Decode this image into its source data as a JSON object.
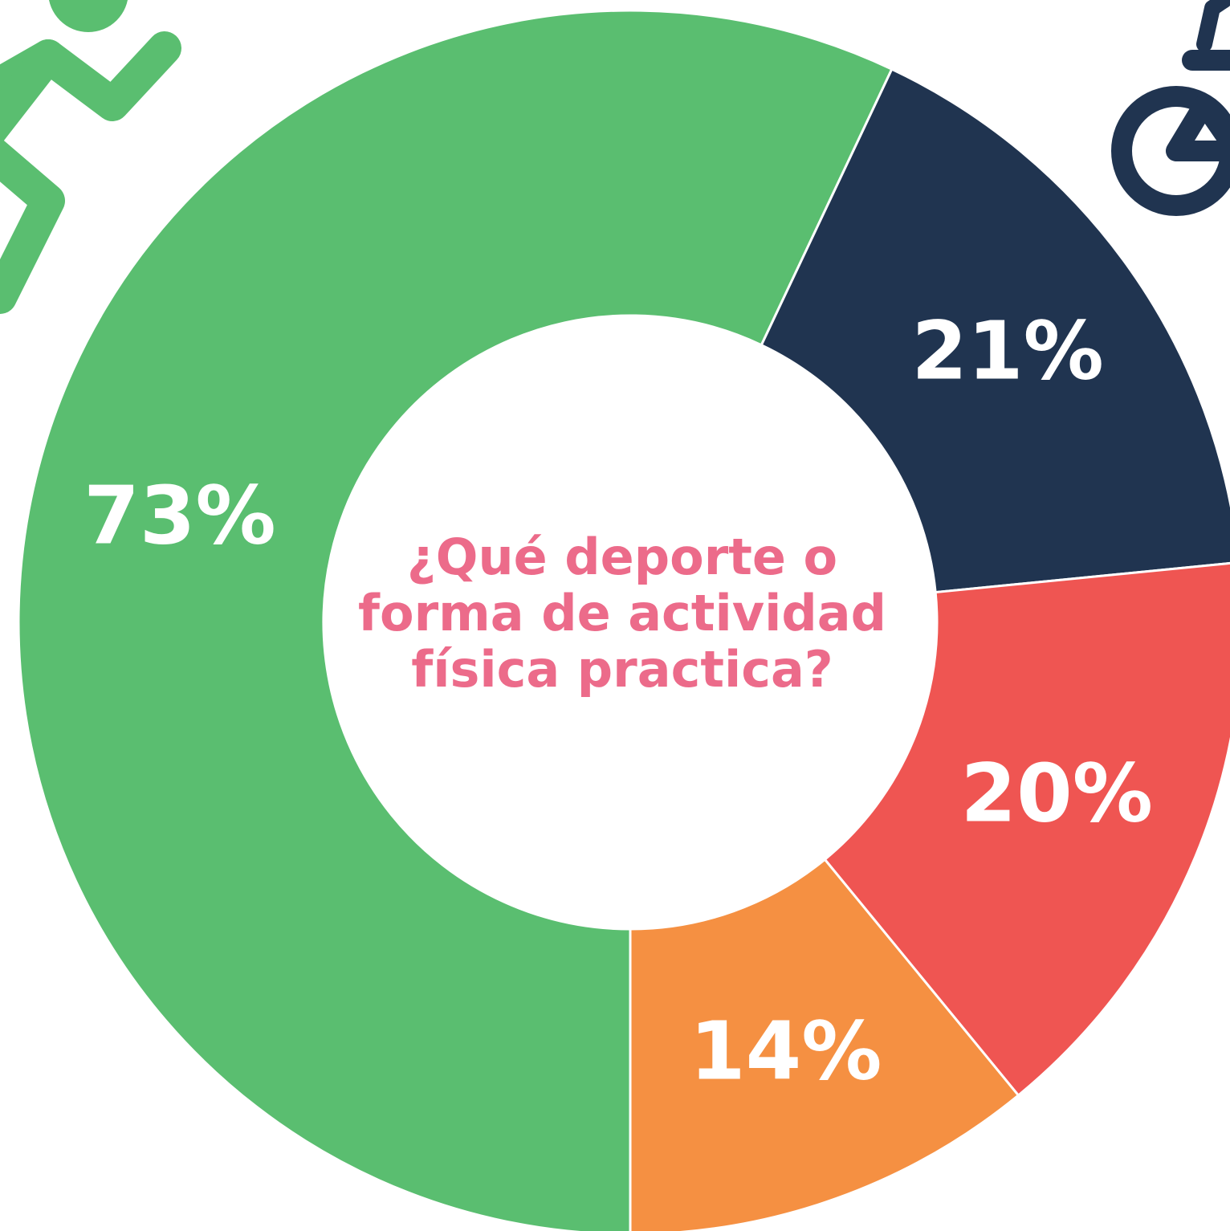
{
  "chart_data": {
    "type": "pie",
    "donut": true,
    "title": [
      "¿Qué deporte o",
      "forma de actividad",
      "física practica?"
    ],
    "values": [
      73,
      21,
      20,
      14
    ],
    "value_labels": [
      "73%",
      "21%",
      "20%",
      "14%"
    ],
    "colors": [
      "#5abe70",
      "#203450",
      "#ef5552",
      "#f59042"
    ]
  }
}
